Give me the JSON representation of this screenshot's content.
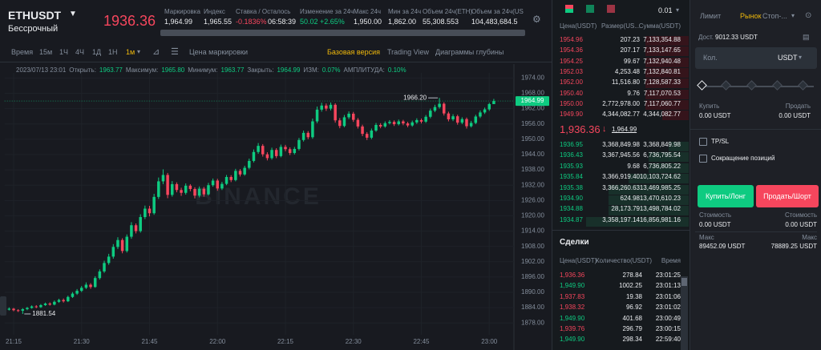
{
  "header": {
    "symbol": "ETHUSDT",
    "contract": "Бессрочный",
    "price": "1936.36",
    "stats": [
      {
        "label": "Маркировка",
        "value": "1,964.99"
      },
      {
        "label": "Индекс",
        "value": "1,965.55"
      },
      {
        "label": "Ставка / Осталось",
        "value": "-0.1836%",
        "extra": "06:58:39",
        "color": "#f6465d"
      },
      {
        "label": "Изменение за 24ч",
        "value": "50.02 +2.65%",
        "color": "#0ecb81"
      },
      {
        "label": "Макс 24ч",
        "value": "1,950.00"
      },
      {
        "label": "Мин за 24ч",
        "value": "1,862.00"
      },
      {
        "label": "Объем 24ч(ETH)",
        "value": "55,308.553"
      },
      {
        "label": "Объем за 24ч(US",
        "value": "104,483,684.5"
      }
    ]
  },
  "toolbar": {
    "intervals": [
      "Время",
      "15м",
      "1Ч",
      "4Ч",
      "1Д",
      "1Н",
      "1м"
    ],
    "price_type": "Цена маркировки",
    "views": [
      "Базовая версия",
      "Trading View",
      "Диаграммы глубины"
    ]
  },
  "chart": {
    "type": "candlestick",
    "info": {
      "time": "2023/07/13 23:01",
      "items": [
        [
          "Открыть:",
          "1963.77"
        ],
        [
          "Максимум:",
          "1965.80"
        ],
        [
          "Минимум:",
          "1963.77"
        ],
        [
          "Закрыть:",
          "1964.99"
        ],
        [
          "ИЗМ:",
          "0.07%"
        ],
        [
          "АМПЛИТУДА:",
          "0.10%"
        ]
      ]
    },
    "watermark": "BINANCE",
    "up_color": "#0ecb81",
    "down_color": "#f6465d",
    "last_price": 1964.99,
    "high_label": {
      "value": 1966.2,
      "label": "1966.20"
    },
    "low_label": 1881.54,
    "ylim": [
      1874,
      1976
    ],
    "xlim": [
      "21:13",
      "23:05"
    ],
    "yticks": [
      {
        "value": 1974,
        "label": "1974.00"
      },
      {
        "value": 1968,
        "label": "1968.00"
      },
      {
        "value": 1962,
        "label": "1962.00"
      },
      {
        "value": 1956,
        "label": "1956.00"
      },
      {
        "value": 1950,
        "label": "1950.00"
      },
      {
        "value": 1944,
        "label": "1944.00"
      },
      {
        "value": 1938,
        "label": "1938.00"
      },
      {
        "value": 1932,
        "label": "1932.00"
      },
      {
        "value": 1926,
        "label": "1926.00"
      },
      {
        "value": 1920,
        "label": "1920.00"
      },
      {
        "value": 1914,
        "label": "1914.00"
      },
      {
        "value": 1908,
        "label": "1908.00"
      },
      {
        "value": 1902,
        "label": "1902.00"
      },
      {
        "value": 1896,
        "label": "1896.00"
      },
      {
        "value": 1890,
        "label": "1890.00"
      },
      {
        "value": 1884,
        "label": "1884.00"
      },
      {
        "value": 1878,
        "label": "1878.00"
      }
    ],
    "xticks": [
      "21:15",
      "21:30",
      "21:45",
      "22:00",
      "22:15",
      "22:30",
      "22:45",
      "23:00"
    ],
    "candles": [
      [
        "21:13",
        1883.5,
        1884.0,
        1882.8,
        1883.2
      ],
      [
        "21:14",
        1883.2,
        1884.1,
        1882.9,
        1883.6
      ],
      [
        "21:15",
        1883.6,
        1883.9,
        1882.6,
        1883.0
      ],
      [
        "21:16",
        1883.0,
        1883.4,
        1882.3,
        1882.8
      ],
      [
        "21:17",
        1882.8,
        1883.8,
        1881.54,
        1883.4
      ],
      [
        "21:18",
        1883.4,
        1884.3,
        1883.0,
        1883.9
      ],
      [
        "21:19",
        1883.9,
        1884.9,
        1883.6,
        1884.5
      ],
      [
        "21:20",
        1884.5,
        1885.0,
        1883.8,
        1884.2
      ],
      [
        "21:21",
        1884.2,
        1885.4,
        1883.9,
        1885.0
      ],
      [
        "21:22",
        1885.0,
        1886.0,
        1884.7,
        1885.6
      ],
      [
        "21:23",
        1885.6,
        1886.1,
        1884.8,
        1885.2
      ],
      [
        "21:24",
        1885.2,
        1886.8,
        1884.9,
        1886.3
      ],
      [
        "21:25",
        1886.3,
        1887.5,
        1885.9,
        1887.0
      ],
      [
        "21:26",
        1887.0,
        1887.6,
        1886.0,
        1886.5
      ],
      [
        "21:27",
        1886.5,
        1888.7,
        1886.2,
        1888.2
      ],
      [
        "21:28",
        1888.2,
        1890.1,
        1887.8,
        1889.5
      ],
      [
        "21:29",
        1889.5,
        1891.3,
        1889.0,
        1890.6
      ],
      [
        "21:30",
        1890.6,
        1892.5,
        1890.1,
        1891.8
      ],
      [
        "21:31",
        1891.8,
        1893.9,
        1891.3,
        1893.0
      ],
      [
        "21:32",
        1893.0,
        1893.6,
        1891.4,
        1892.1
      ],
      [
        "21:33",
        1892.1,
        1896.3,
        1891.8,
        1895.6
      ],
      [
        "21:34",
        1895.6,
        1899.0,
        1895.0,
        1898.2
      ],
      [
        "21:35",
        1898.2,
        1902.4,
        1897.6,
        1901.5
      ],
      [
        "21:36",
        1901.5,
        1905.1,
        1900.8,
        1904.0
      ],
      [
        "21:37",
        1904.0,
        1908.9,
        1903.2,
        1907.8
      ],
      [
        "21:38",
        1907.8,
        1911.6,
        1907.0,
        1910.5
      ],
      [
        "21:39",
        1910.5,
        1911.2,
        1905.3,
        1906.2
      ],
      [
        "21:40",
        1906.2,
        1912.7,
        1905.6,
        1911.8
      ],
      [
        "21:41",
        1911.8,
        1917.5,
        1911.0,
        1916.3
      ],
      [
        "21:42",
        1916.3,
        1917.0,
        1913.1,
        1914.0
      ],
      [
        "21:43",
        1914.0,
        1920.6,
        1913.4,
        1919.5
      ],
      [
        "21:44",
        1919.5,
        1924.0,
        1918.7,
        1922.8
      ],
      [
        "21:45",
        1922.8,
        1923.9,
        1919.8,
        1921.0
      ],
      [
        "21:46",
        1921.0,
        1928.6,
        1920.4,
        1927.4
      ],
      [
        "21:47",
        1927.4,
        1935.0,
        1926.6,
        1933.5
      ],
      [
        "21:48",
        1933.5,
        1938.2,
        1932.4,
        1936.0
      ],
      [
        "21:49",
        1936.0,
        1936.8,
        1926.9,
        1928.2
      ],
      [
        "21:50",
        1928.2,
        1933.6,
        1927.5,
        1932.4
      ],
      [
        "21:51",
        1932.4,
        1933.1,
        1929.2,
        1930.1
      ],
      [
        "21:52",
        1930.1,
        1931.0,
        1927.8,
        1929.0
      ],
      [
        "21:53",
        1929.0,
        1932.7,
        1928.3,
        1931.8
      ],
      [
        "21:54",
        1931.8,
        1932.4,
        1929.6,
        1930.5
      ],
      [
        "21:55",
        1930.5,
        1931.2,
        1926.8,
        1927.9
      ],
      [
        "21:56",
        1927.9,
        1931.5,
        1927.2,
        1930.6
      ],
      [
        "21:57",
        1930.6,
        1931.3,
        1927.5,
        1928.4
      ],
      [
        "21:58",
        1928.4,
        1932.9,
        1927.9,
        1932.0
      ],
      [
        "21:59",
        1932.0,
        1934.6,
        1931.4,
        1933.8
      ],
      [
        "22:00",
        1933.8,
        1934.5,
        1929.8,
        1930.7
      ],
      [
        "22:01",
        1930.7,
        1933.3,
        1930.1,
        1932.5
      ],
      [
        "22:02",
        1932.5,
        1936.0,
        1932.0,
        1935.2
      ],
      [
        "22:03",
        1935.2,
        1935.9,
        1933.2,
        1934.0
      ],
      [
        "22:04",
        1934.0,
        1938.4,
        1933.5,
        1937.6
      ],
      [
        "22:05",
        1937.6,
        1938.3,
        1935.4,
        1936.2
      ],
      [
        "22:06",
        1936.2,
        1939.6,
        1935.7,
        1938.8
      ],
      [
        "22:07",
        1938.8,
        1942.4,
        1938.2,
        1941.5
      ],
      [
        "22:08",
        1941.5,
        1946.0,
        1940.9,
        1945.0
      ],
      [
        "22:09",
        1945.0,
        1948.5,
        1944.3,
        1947.4
      ],
      [
        "22:10",
        1947.4,
        1948.1,
        1943.2,
        1944.1
      ],
      [
        "22:11",
        1944.1,
        1944.9,
        1941.7,
        1942.6
      ],
      [
        "22:12",
        1942.6,
        1946.7,
        1942.0,
        1945.8
      ],
      [
        "22:13",
        1945.8,
        1946.5,
        1942.6,
        1943.4
      ],
      [
        "22:14",
        1943.4,
        1947.9,
        1942.9,
        1947.0
      ],
      [
        "22:15",
        1947.0,
        1947.8,
        1945.3,
        1946.1
      ],
      [
        "22:16",
        1946.1,
        1946.8,
        1943.8,
        1944.6
      ],
      [
        "22:17",
        1944.6,
        1947.0,
        1944.0,
        1946.2
      ],
      [
        "22:18",
        1946.2,
        1950.5,
        1945.6,
        1949.7
      ],
      [
        "22:19",
        1949.7,
        1953.4,
        1949.1,
        1952.5
      ],
      [
        "22:20",
        1952.5,
        1953.2,
        1950.0,
        1950.8
      ],
      [
        "22:21",
        1950.8,
        1958.1,
        1950.2,
        1957.0
      ],
      [
        "22:22",
        1957.0,
        1962.8,
        1956.3,
        1961.6
      ],
      [
        "22:23",
        1961.6,
        1964.3,
        1960.8,
        1963.2
      ],
      [
        "22:24",
        1963.2,
        1964.0,
        1961.1,
        1962.0
      ],
      [
        "22:25",
        1962.0,
        1964.4,
        1961.3,
        1963.5
      ],
      [
        "22:26",
        1963.5,
        1964.1,
        1956.5,
        1957.4
      ],
      [
        "22:27",
        1957.4,
        1958.3,
        1954.3,
        1955.2
      ],
      [
        "22:28",
        1955.2,
        1959.5,
        1954.7,
        1958.6
      ],
      [
        "22:29",
        1958.6,
        1960.9,
        1957.9,
        1960.0
      ],
      [
        "22:30",
        1960.0,
        1960.7,
        1956.8,
        1957.6
      ],
      [
        "22:31",
        1957.6,
        1958.3,
        1954.2,
        1955.0
      ],
      [
        "22:32",
        1955.0,
        1955.7,
        1951.2,
        1952.1
      ],
      [
        "22:33",
        1952.1,
        1952.8,
        1949.7,
        1950.6
      ],
      [
        "22:34",
        1950.6,
        1954.2,
        1950.0,
        1953.4
      ],
      [
        "22:35",
        1953.4,
        1956.4,
        1952.9,
        1955.6
      ],
      [
        "22:36",
        1955.6,
        1956.3,
        1954.3,
        1955.0
      ],
      [
        "22:37",
        1955.0,
        1957.0,
        1954.5,
        1956.3
      ],
      [
        "22:38",
        1956.3,
        1957.5,
        1955.8,
        1956.8
      ],
      [
        "22:39",
        1956.8,
        1957.4,
        1955.2,
        1955.9
      ],
      [
        "22:40",
        1955.9,
        1957.7,
        1955.4,
        1957.0
      ],
      [
        "22:41",
        1957.0,
        1957.6,
        1955.5,
        1956.2
      ],
      [
        "22:42",
        1956.2,
        1956.8,
        1954.7,
        1955.4
      ],
      [
        "22:43",
        1955.4,
        1957.3,
        1954.9,
        1956.6
      ],
      [
        "22:44",
        1956.6,
        1958.2,
        1956.0,
        1957.5
      ],
      [
        "22:45",
        1957.5,
        1958.1,
        1956.2,
        1956.9
      ],
      [
        "22:46",
        1956.9,
        1959.5,
        1956.4,
        1958.8
      ],
      [
        "22:47",
        1958.8,
        1962.0,
        1958.2,
        1961.2
      ],
      [
        "22:48",
        1961.2,
        1963.5,
        1960.6,
        1962.6
      ],
      [
        "22:49",
        1962.6,
        1966.2,
        1962.0,
        1963.9
      ],
      [
        "22:50",
        1963.9,
        1964.5,
        1959.3,
        1960.1
      ],
      [
        "22:51",
        1960.1,
        1960.8,
        1957.0,
        1957.8
      ],
      [
        "22:52",
        1957.8,
        1959.8,
        1957.1,
        1959.0
      ],
      [
        "22:53",
        1959.0,
        1959.6,
        1955.7,
        1956.5
      ],
      [
        "22:54",
        1956.5,
        1958.6,
        1955.9,
        1957.9
      ],
      [
        "22:55",
        1957.9,
        1958.5,
        1954.2,
        1955.1
      ],
      [
        "22:56",
        1955.1,
        1957.2,
        1954.6,
        1956.4
      ],
      [
        "22:57",
        1956.4,
        1959.6,
        1955.9,
        1958.9
      ],
      [
        "22:58",
        1958.9,
        1961.3,
        1958.3,
        1960.5
      ],
      [
        "22:59",
        1960.5,
        1962.4,
        1959.9,
        1961.7
      ],
      [
        "23:00",
        1961.7,
        1964.3,
        1961.1,
        1963.77
      ],
      [
        "23:01",
        1963.77,
        1965.8,
        1963.77,
        1964.99
      ]
    ]
  },
  "orderbook": {
    "step": "0.01",
    "columns": [
      "Цена(USDT)",
      "Размер(US...",
      "Сумма(USDT)"
    ],
    "asks": [
      [
        "1954.96",
        "207.23",
        "7,133,354.88"
      ],
      [
        "1954.36",
        "207.17",
        "7,133,147.65"
      ],
      [
        "1954.25",
        "99.67",
        "7,132,940.48"
      ],
      [
        "1952.03",
        "4,253.48",
        "7,132,840.81"
      ],
      [
        "1952.00",
        "11,516.80",
        "7,128,587.33"
      ],
      [
        "1950.40",
        "9.76",
        "7,117,070.53"
      ],
      [
        "1950.00",
        "2,772,978.00",
        "7,117,060.77"
      ],
      [
        "1949.90",
        "4,344,082.77",
        "4,344,082.77"
      ]
    ],
    "last": "1,936.36",
    "arrow": "↓",
    "mark": "1,964.99",
    "bids": [
      [
        "1936.95",
        "3,368,849.98",
        "3,368,849.98"
      ],
      [
        "1936.43",
        "3,367,945.56",
        "6,736,795.54"
      ],
      [
        "1935.93",
        "9.68",
        "6,736,805.22"
      ],
      [
        "1935.84",
        "3,366,919.40",
        "10,103,724.62"
      ],
      [
        "1935.38",
        "3,366,260.63",
        "13,469,985.25"
      ],
      [
        "1934.90",
        "624.98",
        "13,470,610.23"
      ],
      [
        "1934.88",
        "28,173.79",
        "13,498,784.02"
      ],
      [
        "1934.87",
        "3,358,197.14",
        "16,856,981.16"
      ]
    ]
  },
  "trades": {
    "title": "Сделки",
    "columns": [
      "Цена(USDT)",
      "Количество(USDT)",
      "Время"
    ],
    "rows": [
      {
        "price": "1,936.36",
        "qty": "278.84",
        "time": "23:01:25",
        "color": "#f6465d"
      },
      {
        "price": "1,949.90",
        "qty": "1002.25",
        "time": "23:01:13",
        "color": "#0ecb81"
      },
      {
        "price": "1,937.83",
        "qty": "19.38",
        "time": "23:01:06",
        "color": "#f6465d"
      },
      {
        "price": "1,938.32",
        "qty": "96.92",
        "time": "23:01:02",
        "color": "#f6465d"
      },
      {
        "price": "1,949.90",
        "qty": "401.68",
        "time": "23:00:49",
        "color": "#0ecb81"
      },
      {
        "price": "1,939.76",
        "qty": "296.79",
        "time": "23:00:15",
        "color": "#f6465d"
      },
      {
        "price": "1,949.90",
        "qty": "298.34",
        "time": "22:59:40",
        "color": "#0ecb81"
      }
    ]
  },
  "order_form": {
    "tabs": [
      "Лимит",
      "Рынок",
      "Стоп-..."
    ],
    "available_label": "Дост.",
    "available": "9012.33 USDT",
    "qty_label": "Кол.",
    "qty_unit": "USDT",
    "buy_label": "Купить",
    "buy_value": "0.00 USDT",
    "sell_label": "Продать",
    "sell_value": "0.00 USDT",
    "tpsl": "TP/SL",
    "reduce": "Сокращение позиций",
    "buy_button": "Купить/Лонг",
    "sell_button": "Продать/Шорт",
    "cost_label": "Стоимость",
    "buy_cost": "0.00 USDT",
    "sell_cost": "0.00 USDT",
    "max_label": "Макс",
    "buy_max": "89452.09 USDT",
    "sell_max": "78889.25 USDT"
  }
}
